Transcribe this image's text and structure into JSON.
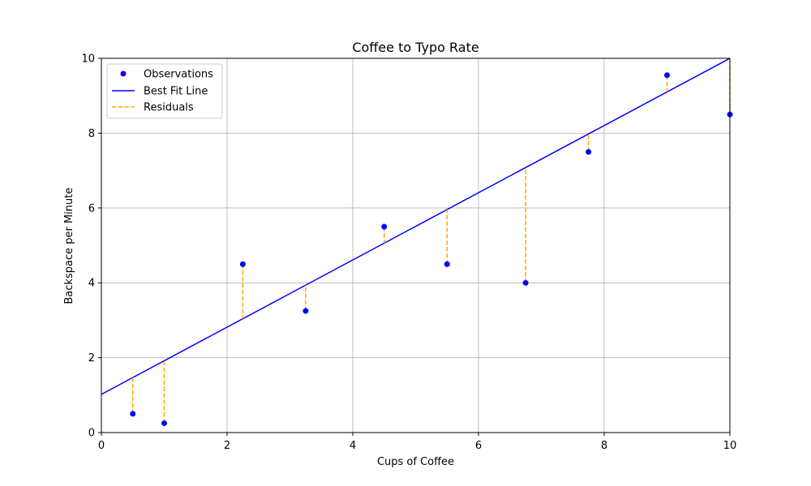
{
  "chart_data": {
    "type": "scatter",
    "title": "Coffee to Typo Rate",
    "xlabel": "Cups of Coffee",
    "ylabel": "Backspace per Minute",
    "xlim": [
      0,
      10
    ],
    "ylim": [
      0,
      10
    ],
    "xticks": [
      0,
      2,
      4,
      6,
      8,
      10
    ],
    "yticks": [
      0,
      2,
      4,
      6,
      8,
      10
    ],
    "grid": true,
    "legend_position": "top-left",
    "series": [
      {
        "name": "Observations",
        "kind": "scatter",
        "color": "#0000ff",
        "points": [
          {
            "x": 0.5,
            "y": 0.5
          },
          {
            "x": 1.0,
            "y": 0.25
          },
          {
            "x": 2.25,
            "y": 4.5
          },
          {
            "x": 3.25,
            "y": 3.25
          },
          {
            "x": 4.5,
            "y": 5.5
          },
          {
            "x": 5.5,
            "y": 4.5
          },
          {
            "x": 6.75,
            "y": 4.0
          },
          {
            "x": 7.75,
            "y": 7.5
          },
          {
            "x": 9.0,
            "y": 9.55
          },
          {
            "x": 10.0,
            "y": 8.5
          }
        ]
      },
      {
        "name": "Best Fit Line",
        "kind": "line",
        "color": "#0000ff",
        "points": [
          {
            "x": 0,
            "y": 1.02
          },
          {
            "x": 10,
            "y": 10.0
          }
        ]
      },
      {
        "name": "Residuals",
        "kind": "dashed-segments",
        "color": "#ffa500"
      }
    ]
  }
}
